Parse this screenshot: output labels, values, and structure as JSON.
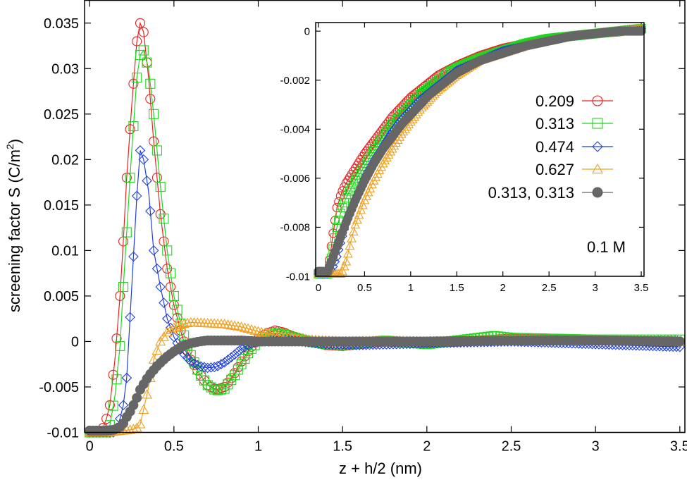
{
  "chart_data": [
    {
      "id": "main",
      "type": "line",
      "xlabel": "z + h/2 (nm)",
      "ylabel_main": "screening factor S (C/m",
      "ylabel_sup": "2",
      "ylabel_close": ")",
      "xlim": [
        -0.03,
        3.53
      ],
      "ylim": [
        -0.01,
        0.0375
      ],
      "xticks": [
        0,
        0.5,
        1,
        1.5,
        2,
        2.5,
        3,
        3.5
      ],
      "xtick_labels": [
        "0",
        "0.5",
        "1",
        "1.5",
        "2",
        "2.5",
        "3",
        "3.5"
      ],
      "yticks": [
        -0.01,
        -0.005,
        0,
        0.005,
        0.01,
        0.015,
        0.02,
        0.025,
        0.03,
        0.035
      ],
      "ytick_labels": [
        "-0.01",
        "-0.005",
        "0",
        "0.005",
        "0.01",
        "0.015",
        "0.02",
        "0.025",
        "0.03",
        "0.035"
      ],
      "series": [
        {
          "name": "0.209",
          "color": "#e8211f",
          "marker": "circle",
          "x": [
            0,
            0.05,
            0.08,
            0.1,
            0.12,
            0.15,
            0.18,
            0.2,
            0.22,
            0.25,
            0.28,
            0.3,
            0.32,
            0.35,
            0.38,
            0.42,
            0.46,
            0.5,
            0.55,
            0.6,
            0.65,
            0.7,
            0.75,
            0.8,
            0.85,
            0.9,
            0.95,
            1.0,
            1.05,
            1.1,
            1.15,
            1.2,
            1.3,
            1.4,
            1.5,
            1.75,
            2.0,
            2.5,
            3.0,
            3.5
          ],
          "y": [
            -0.01,
            -0.01,
            -0.0095,
            -0.0085,
            -0.007,
            -0.002,
            0.005,
            0.011,
            0.018,
            0.026,
            0.033,
            0.035,
            0.034,
            0.029,
            0.022,
            0.014,
            0.008,
            0.004,
            0.0005,
            -0.002,
            -0.0035,
            -0.0048,
            -0.0053,
            -0.005,
            -0.0038,
            -0.0022,
            -0.0008,
            0.0003,
            0.0009,
            0.0012,
            0.001,
            0.0006,
            0.0,
            -0.0004,
            -0.0005,
            0.0,
            -0.0002,
            0.0003,
            0.0001,
            0.0
          ]
        },
        {
          "name": "0.313",
          "color": "#1fd61f",
          "marker": "square",
          "x": [
            0,
            0.05,
            0.1,
            0.12,
            0.15,
            0.18,
            0.2,
            0.22,
            0.25,
            0.28,
            0.3,
            0.32,
            0.35,
            0.38,
            0.42,
            0.46,
            0.5,
            0.55,
            0.6,
            0.65,
            0.7,
            0.75,
            0.8,
            0.85,
            0.9,
            0.95,
            1.0,
            1.05,
            1.1,
            1.15,
            1.2,
            1.3,
            1.4,
            1.5,
            1.75,
            2.0,
            2.4,
            2.5,
            3.0,
            3.5
          ],
          "y": [
            -0.01,
            -0.01,
            -0.01,
            -0.0092,
            -0.006,
            -0.0005,
            0.006,
            0.012,
            0.021,
            0.029,
            0.0315,
            0.032,
            0.03,
            0.025,
            0.017,
            0.01,
            0.005,
            0.0012,
            -0.0015,
            -0.0035,
            -0.0048,
            -0.0054,
            -0.0052,
            -0.004,
            -0.0025,
            -0.001,
            0.0,
            0.0006,
            0.0009,
            0.0008,
            0.0005,
            0.0,
            -0.0003,
            -0.0004,
            0.0001,
            -0.0003,
            0.0006,
            0.0004,
            0.0002,
            0.0002
          ]
        },
        {
          "name": "0.474",
          "color": "#1f3fdc",
          "marker": "diamond",
          "x": [
            0,
            0.1,
            0.15,
            0.18,
            0.2,
            0.22,
            0.25,
            0.28,
            0.3,
            0.32,
            0.35,
            0.38,
            0.42,
            0.46,
            0.5,
            0.55,
            0.6,
            0.65,
            0.7,
            0.75,
            0.8,
            0.85,
            0.9,
            0.95,
            1.0,
            1.1,
            1.2,
            1.4,
            1.6,
            2.0,
            2.5,
            3.0,
            3.5
          ],
          "y": [
            -0.01,
            -0.01,
            -0.01,
            -0.0085,
            -0.007,
            -0.004,
            0.006,
            0.016,
            0.021,
            0.02,
            0.0165,
            0.01,
            0.006,
            0.0025,
            0.0005,
            -0.0012,
            -0.0022,
            -0.0027,
            -0.0029,
            -0.0028,
            -0.0023,
            -0.0016,
            -0.0008,
            -0.0003,
            0.0,
            0.0002,
            0.0001,
            -0.0003,
            -0.0004,
            -0.0002,
            0.0,
            -0.0003,
            -0.0006
          ]
        },
        {
          "name": "0.627",
          "color": "#f0a01e",
          "marker": "triangle",
          "x": [
            0,
            0.1,
            0.2,
            0.25,
            0.28,
            0.3,
            0.32,
            0.35,
            0.38,
            0.42,
            0.46,
            0.5,
            0.55,
            0.6,
            0.7,
            0.8,
            0.9,
            1.0,
            1.1,
            1.2,
            1.3,
            1.5,
            1.75,
            2.0,
            2.5,
            3.0,
            3.5
          ],
          "y": [
            -0.01,
            -0.01,
            -0.0098,
            -0.0097,
            -0.0095,
            -0.0091,
            -0.0075,
            -0.005,
            -0.002,
            0.0,
            0.001,
            0.0015,
            0.0019,
            0.0021,
            0.002,
            0.0019,
            0.0016,
            0.0011,
            0.0007,
            0.0004,
            0.0002,
            0.0,
            0.0001,
            0.0,
            0.0002,
            0.0001,
            0.0
          ]
        },
        {
          "name": "0.313, 0.313",
          "color": "#666666",
          "marker": "filled-circle",
          "x": [
            0,
            0.1,
            0.15,
            0.18,
            0.2,
            0.22,
            0.25,
            0.28,
            0.3,
            0.35,
            0.4,
            0.45,
            0.5,
            0.55,
            0.6,
            0.65,
            0.7,
            0.8,
            0.9,
            1.0,
            1.2,
            1.5,
            2.0,
            2.5,
            3.0,
            3.5
          ],
          "y": [
            -0.0098,
            -0.0098,
            -0.0097,
            -0.0094,
            -0.009,
            -0.0083,
            -0.0074,
            -0.0062,
            -0.0053,
            -0.0038,
            -0.0027,
            -0.0018,
            -0.0011,
            -0.0005,
            -0.0002,
            0.0,
            0.0001,
            0.0001,
            0.0001,
            0.0,
            0.0,
            0.0,
            0.0,
            0.0001,
            0.0001,
            0.0
          ]
        }
      ]
    },
    {
      "id": "inset",
      "type": "line",
      "xlim": [
        -0.03,
        3.53
      ],
      "ylim": [
        -0.01,
        0.00035
      ],
      "xticks": [
        0,
        0.5,
        1,
        1.5,
        2,
        2.5,
        3,
        3.5
      ],
      "xtick_labels": [
        "0",
        "0.5",
        "1",
        "1.5",
        "2",
        "2.5",
        "3",
        "3.5"
      ],
      "yticks": [
        -0.01,
        -0.008,
        -0.006,
        -0.004,
        -0.002,
        0
      ],
      "ytick_labels": [
        "-0.01",
        "-0.008",
        "-0.006",
        "-0.004",
        "-0.002",
        "0"
      ],
      "annotation": "0.1 M",
      "series": [
        {
          "name": "0.209",
          "color": "#e8211f",
          "marker": "circle",
          "x": [
            0,
            0.05,
            0.1,
            0.15,
            0.2,
            0.25,
            0.3,
            0.4,
            0.5,
            0.6,
            0.7,
            0.8,
            0.9,
            1.0,
            1.1,
            1.2,
            1.3,
            1.4,
            1.5,
            1.75,
            2.0,
            2.25,
            2.5,
            2.75,
            3.0,
            3.25,
            3.5
          ],
          "y": [
            -0.0099,
            -0.0099,
            -0.0099,
            -0.0085,
            -0.0072,
            -0.0066,
            -0.0062,
            -0.0056,
            -0.005,
            -0.0045,
            -0.004,
            -0.0035,
            -0.0031,
            -0.0027,
            -0.0024,
            -0.0021,
            -0.0018,
            -0.0016,
            -0.0014,
            -0.001,
            -0.0007,
            -0.0005,
            -0.0003,
            -0.0002,
            -0.0001,
            -3e-05,
            0.0001
          ]
        },
        {
          "name": "0.313",
          "color": "#1fd61f",
          "marker": "square",
          "x": [
            0,
            0.05,
            0.1,
            0.15,
            0.2,
            0.25,
            0.3,
            0.4,
            0.5,
            0.6,
            0.7,
            0.8,
            0.9,
            1.0,
            1.1,
            1.2,
            1.3,
            1.4,
            1.5,
            1.75,
            2.0,
            2.25,
            2.5,
            2.75,
            3.0,
            3.25,
            3.5
          ],
          "y": [
            -0.0099,
            -0.0099,
            -0.0099,
            -0.0091,
            -0.008,
            -0.0073,
            -0.0068,
            -0.0061,
            -0.0055,
            -0.0049,
            -0.0043,
            -0.0038,
            -0.0034,
            -0.003,
            -0.0026,
            -0.0023,
            -0.002,
            -0.0017,
            -0.0015,
            -0.0011,
            -0.0008,
            -0.0005,
            -0.0003,
            -0.0002,
            -0.0001,
            0.0,
            0.0001
          ]
        },
        {
          "name": "0.474",
          "color": "#1f3fdc",
          "marker": "diamond",
          "x": [
            0,
            0.05,
            0.1,
            0.15,
            0.2,
            0.25,
            0.3,
            0.4,
            0.5,
            0.6,
            0.7,
            0.8,
            0.9,
            1.0,
            1.1,
            1.2,
            1.3,
            1.4,
            1.5,
            1.75,
            2.0,
            2.25,
            2.5,
            2.75,
            3.0,
            3.25,
            3.5
          ],
          "y": [
            -0.0099,
            -0.0099,
            -0.0099,
            -0.0097,
            -0.0092,
            -0.0085,
            -0.0078,
            -0.0069,
            -0.006,
            -0.0053,
            -0.0047,
            -0.0041,
            -0.0036,
            -0.0032,
            -0.0028,
            -0.0025,
            -0.0022,
            -0.0019,
            -0.0016,
            -0.0012,
            -0.0008,
            -0.0006,
            -0.0004,
            -0.0002,
            -0.0001,
            0.0,
            0.0001
          ]
        },
        {
          "name": "0.627",
          "color": "#f0a01e",
          "marker": "triangle",
          "x": [
            0,
            0.05,
            0.1,
            0.15,
            0.2,
            0.25,
            0.3,
            0.35,
            0.4,
            0.5,
            0.6,
            0.7,
            0.8,
            0.9,
            1.0,
            1.1,
            1.2,
            1.3,
            1.4,
            1.5,
            1.75,
            2.0,
            2.25,
            2.5,
            2.75,
            3.0,
            3.25,
            3.5
          ],
          "y": [
            -0.0099,
            -0.0099,
            -0.0099,
            -0.0099,
            -0.0099,
            -0.0099,
            -0.0094,
            -0.0086,
            -0.0079,
            -0.0069,
            -0.0061,
            -0.0054,
            -0.0048,
            -0.0042,
            -0.0037,
            -0.0032,
            -0.0028,
            -0.0024,
            -0.0021,
            -0.0018,
            -0.0012,
            -0.0009,
            -0.0006,
            -0.0004,
            -0.0002,
            -0.0001,
            0.0,
            0.0001
          ]
        },
        {
          "name": "0.313, 0.313",
          "color": "#666666",
          "marker": "filled-circle",
          "x": [
            0,
            0.05,
            0.1,
            0.15,
            0.2,
            0.25,
            0.3,
            0.4,
            0.5,
            0.6,
            0.7,
            0.8,
            0.9,
            1.0,
            1.1,
            1.2,
            1.3,
            1.4,
            1.5,
            1.75,
            2.0,
            2.25,
            2.5,
            2.75,
            3.0,
            3.25,
            3.5
          ],
          "y": [
            -0.0098,
            -0.0098,
            -0.0098,
            -0.0093,
            -0.0088,
            -0.0083,
            -0.0078,
            -0.0069,
            -0.0061,
            -0.0054,
            -0.0048,
            -0.0043,
            -0.0038,
            -0.0034,
            -0.003,
            -0.0026,
            -0.0023,
            -0.002,
            -0.0017,
            -0.0012,
            -0.0009,
            -0.0006,
            -0.0004,
            -0.0002,
            -0.0001,
            0.0,
            0.0
          ]
        }
      ]
    }
  ]
}
